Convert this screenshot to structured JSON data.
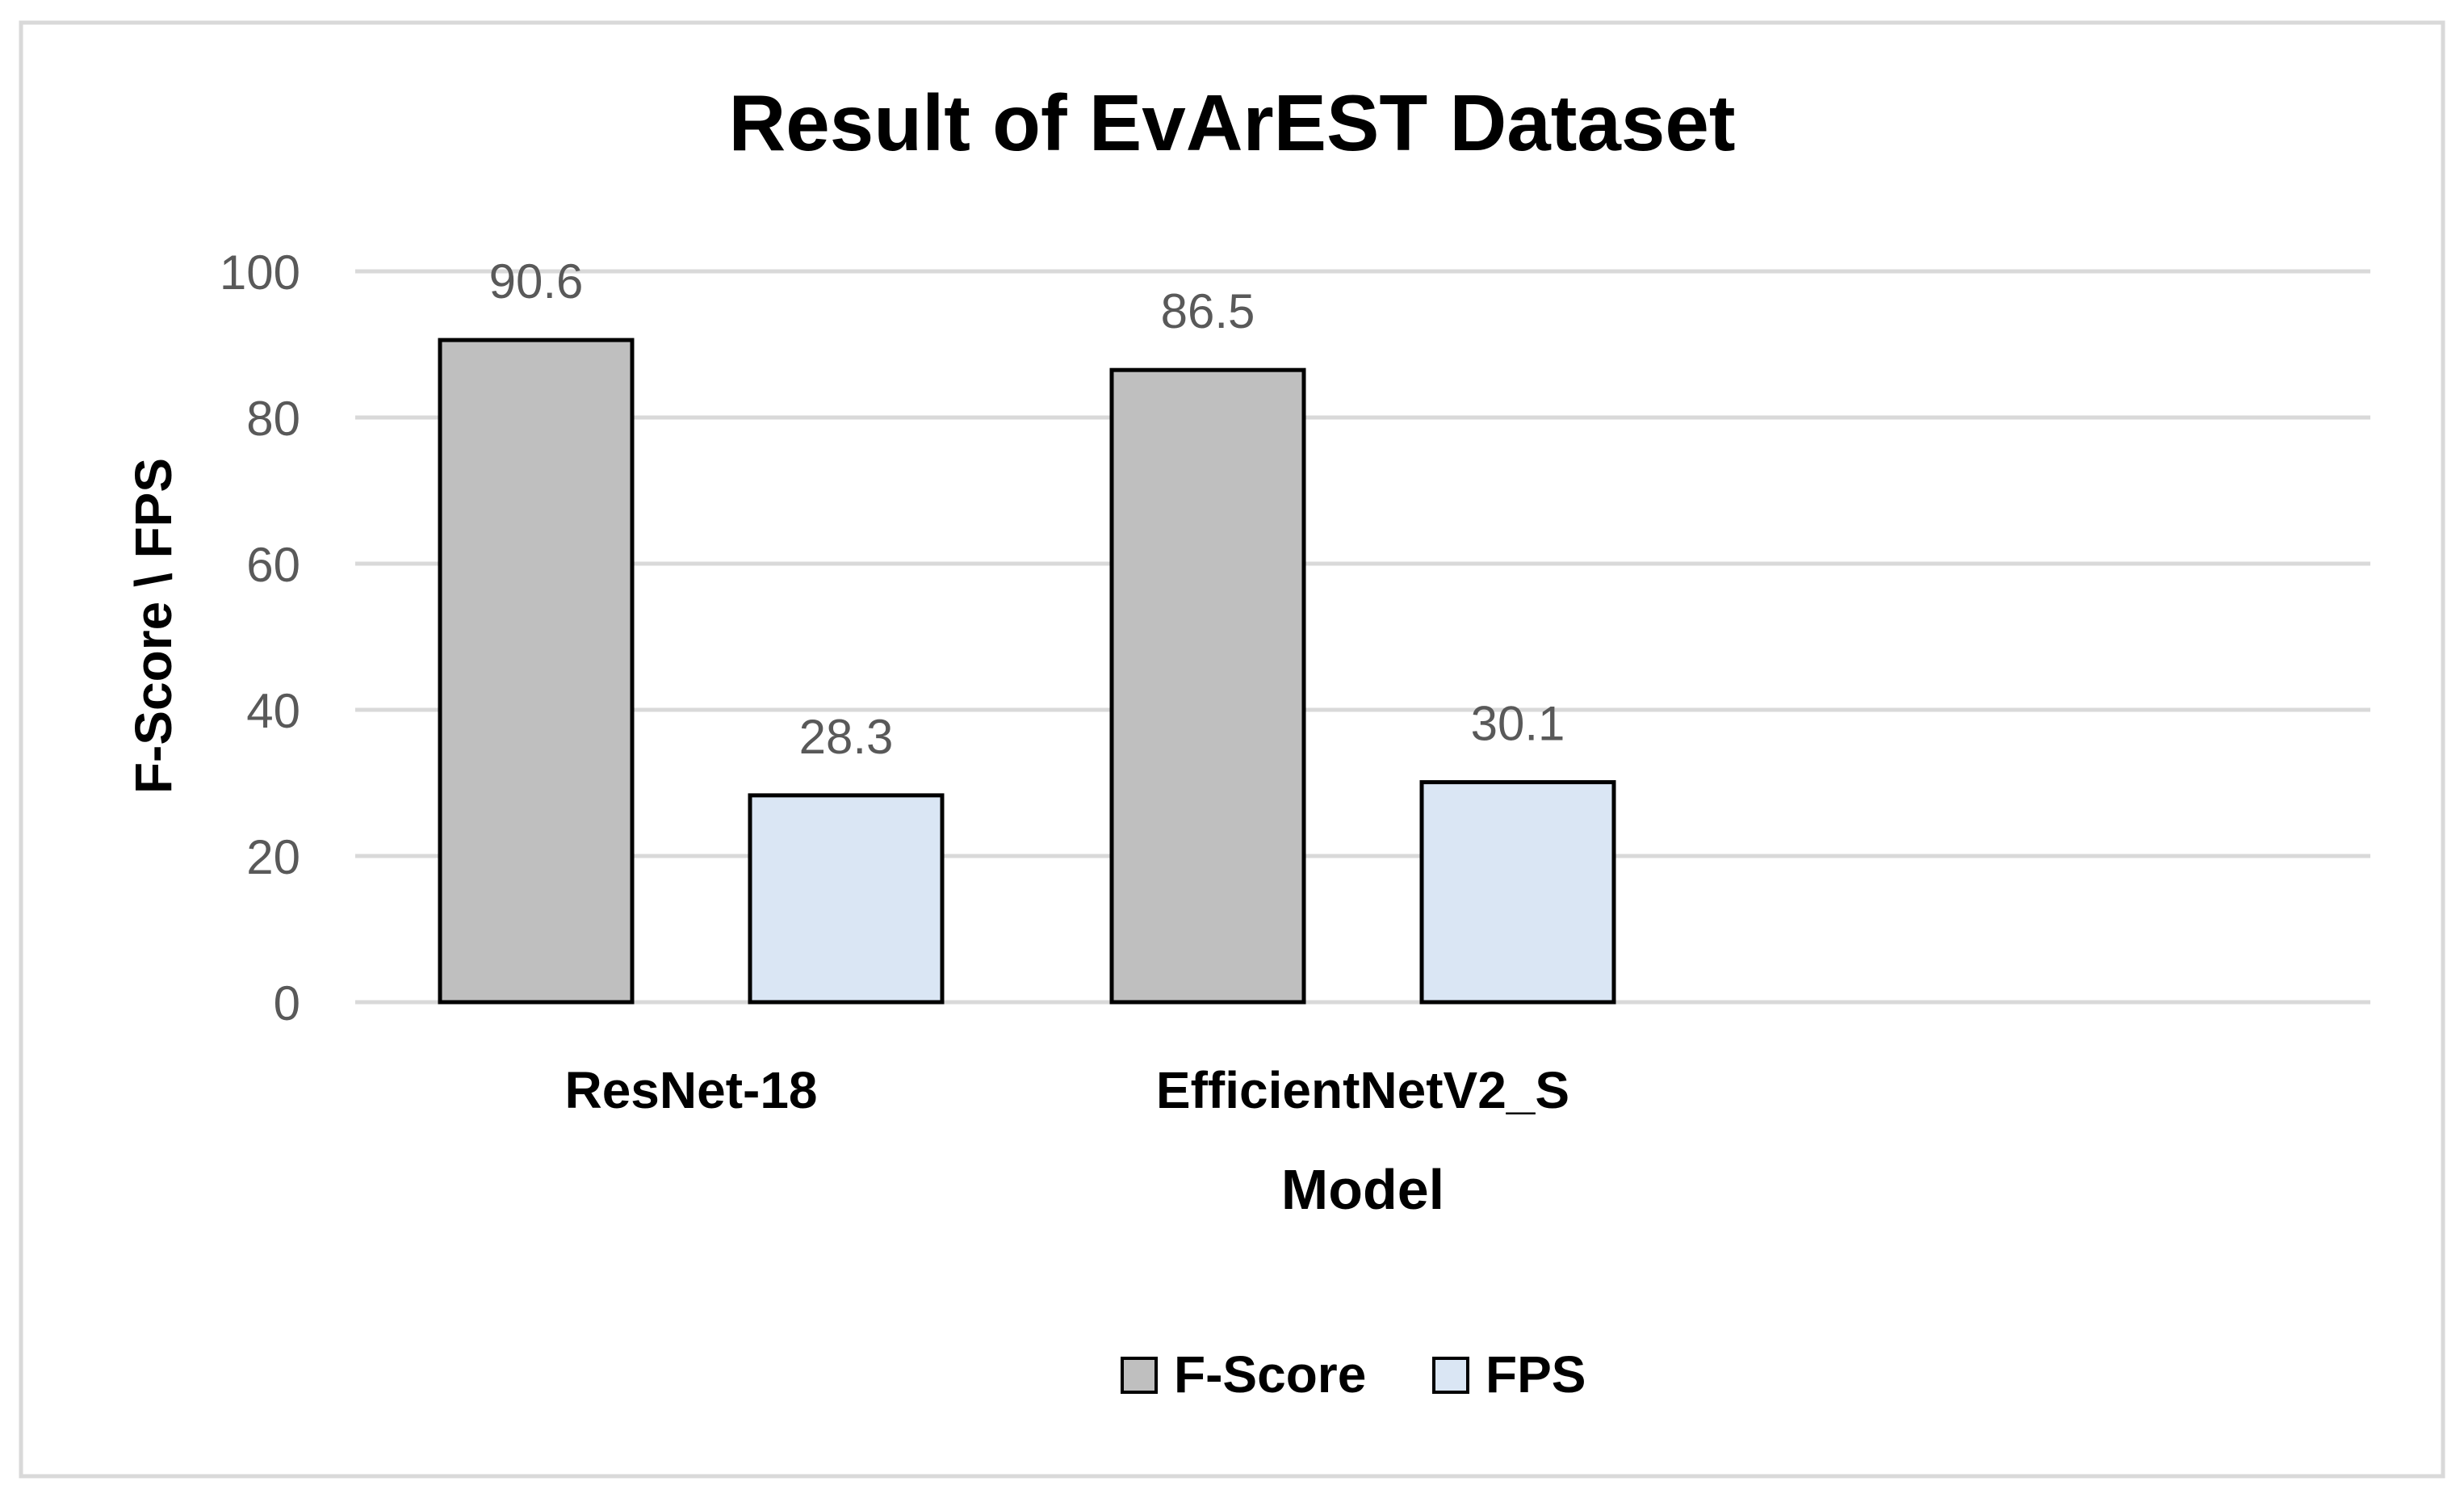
{
  "chart_data": {
    "type": "bar",
    "title": "Result of EvArEST Dataset",
    "xlabel": "Model",
    "ylabel": "F-Score \\ FPS",
    "categories": [
      "ResNet-18",
      "EfficientNetV2_S"
    ],
    "series": [
      {
        "name": "F-Score",
        "values": [
          90.6,
          86.5
        ],
        "labels": [
          "90.6",
          "86.5"
        ],
        "color": "#BFBFBF"
      },
      {
        "name": "FPS",
        "values": [
          28.3,
          30.1
        ],
        "labels": [
          "28.3",
          "30.1"
        ],
        "color": "#DAE6F4"
      }
    ],
    "ylim": [
      0,
      100
    ],
    "yticks": [
      0,
      20,
      40,
      60,
      80,
      100
    ],
    "ytick_labels": [
      "0",
      "20",
      "40",
      "60",
      "80",
      "100"
    ],
    "grid": true,
    "legend_position": "bottom",
    "colors": {
      "bar_edge": "#000000",
      "grid": "#D9D9D9",
      "tick_text": "#595959",
      "label_text": "#000000",
      "frame": "#D9D9D9"
    }
  }
}
